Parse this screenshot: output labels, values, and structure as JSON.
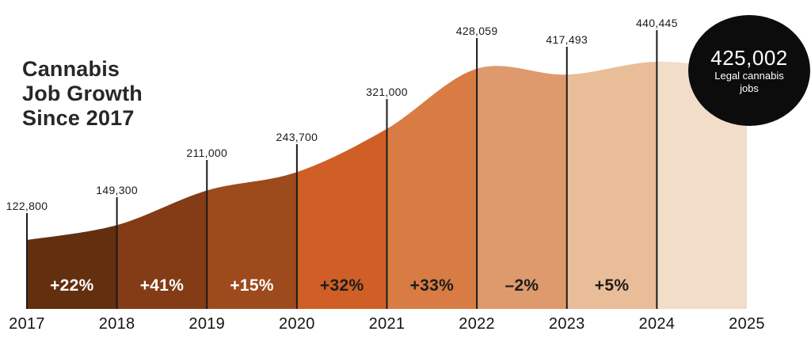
{
  "header": {
    "title_lines": [
      "Cannabis",
      "Job Growth",
      "Since 2017"
    ]
  },
  "badge": {
    "value": "425,002",
    "caption_line1": "Legal cannabis",
    "caption_line2": "jobs",
    "bg_color": "#0c0c0c",
    "text_color": "#ffffff"
  },
  "chart_data": {
    "type": "area",
    "title": "Cannabis Job Growth Since 2017",
    "xlabel": "",
    "ylabel": "",
    "x": [
      2017,
      2018,
      2019,
      2020,
      2021,
      2022,
      2023,
      2024,
      2025
    ],
    "ylim": [
      0,
      450000
    ],
    "grid": false,
    "legend": "none",
    "points": [
      {
        "year": "2017",
        "value": 122800,
        "label": "122,800"
      },
      {
        "year": "2018",
        "value": 149300,
        "label": "149,300"
      },
      {
        "year": "2019",
        "value": 211000,
        "label": "211,000"
      },
      {
        "year": "2020",
        "value": 243700,
        "label": "243,700"
      },
      {
        "year": "2021",
        "value": 321000,
        "label": "321,000"
      },
      {
        "year": "2022",
        "value": 428059,
        "label": "428,059"
      },
      {
        "year": "2023",
        "value": 417493,
        "label": "417,493"
      },
      {
        "year": "2024",
        "value": 440445,
        "label": "440,445"
      }
    ],
    "current": {
      "value": 425002,
      "label": "425,002",
      "caption": "Legal cannabis jobs"
    },
    "segments": [
      {
        "range": "2017-2018",
        "pct_change": "+22%",
        "fill": "#622f0f",
        "label_color": "#ffffff"
      },
      {
        "range": "2018-2019",
        "pct_change": "+41%",
        "fill": "#833c15",
        "label_color": "#ffffff"
      },
      {
        "range": "2019-2020",
        "pct_change": "+15%",
        "fill": "#9d4a1c",
        "label_color": "#ffffff"
      },
      {
        "range": "2020-2021",
        "pct_change": "+32%",
        "fill": "#cf5f27",
        "label_color": "#1d1d1b"
      },
      {
        "range": "2021-2022",
        "pct_change": "+33%",
        "fill": "#d87c43",
        "label_color": "#1d1d1b"
      },
      {
        "range": "2022-2023",
        "pct_change": "–2%",
        "fill": "#de9a6d",
        "label_color": "#1d1d1b"
      },
      {
        "range": "2023-2024",
        "pct_change": "+5%",
        "fill": "#e9bd98",
        "label_color": "#1d1d1b"
      },
      {
        "range": "2024-2025",
        "pct_change": null,
        "fill": "#f2ddc9",
        "label_color": null
      }
    ],
    "x_tick_labels": [
      "2017",
      "2018",
      "2019",
      "2020",
      "2021",
      "2022",
      "2023",
      "2024",
      "2025"
    ],
    "marker_line_color": "#1a1a1a",
    "label_text_color": "#1b1b1b"
  }
}
